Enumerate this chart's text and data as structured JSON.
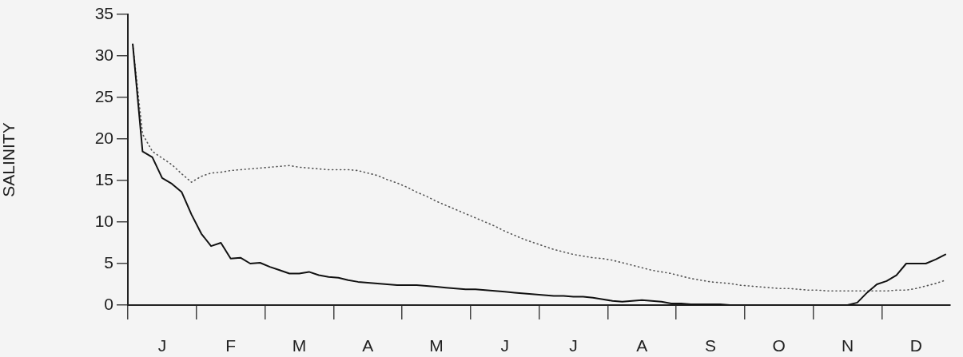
{
  "chart_data": {
    "type": "line",
    "ylabel": "SALINITY",
    "ylim": [
      0,
      35
    ],
    "yticks": [
      0,
      5,
      10,
      15,
      20,
      25,
      30,
      35
    ],
    "grid": false,
    "legend": false,
    "marker": "none",
    "categories": [
      null,
      null,
      null,
      "J",
      null,
      null,
      null,
      null,
      null,
      null,
      "F",
      null,
      null,
      null,
      null,
      null,
      null,
      "M",
      null,
      null,
      null,
      null,
      null,
      null,
      "A",
      null,
      null,
      null,
      null,
      null,
      null,
      "M",
      null,
      null,
      null,
      null,
      null,
      null,
      "J",
      null,
      null,
      null,
      null,
      null,
      null,
      "J",
      null,
      null,
      null,
      null,
      null,
      null,
      "A",
      null,
      null,
      null,
      null,
      null,
      null,
      "S",
      null,
      null,
      null,
      null,
      null,
      null,
      "O",
      null,
      null,
      null,
      null,
      null,
      null,
      "N",
      null,
      null,
      null,
      null,
      null,
      null,
      "D",
      null,
      null,
      null
    ],
    "series": [
      {
        "color": "#111111",
        "line_style": "solid",
        "values": [
          31.4,
          18.5,
          17.8,
          15.3,
          14.6,
          13.6,
          10.9,
          8.6,
          7.1,
          7.5,
          5.6,
          5.7,
          5.0,
          5.1,
          4.6,
          4.2,
          3.8,
          3.8,
          4.0,
          3.6,
          3.4,
          3.3,
          3.0,
          2.8,
          2.7,
          2.6,
          2.5,
          2.4,
          2.4,
          2.4,
          2.3,
          2.2,
          2.1,
          2.0,
          1.9,
          1.9,
          1.8,
          1.7,
          1.6,
          1.5,
          1.4,
          1.3,
          1.2,
          1.1,
          1.1,
          1.0,
          1.0,
          0.9,
          0.7,
          0.5,
          0.4,
          0.5,
          0.6,
          0.5,
          0.4,
          0.2,
          0.2,
          0.1,
          0.1,
          0.1,
          0.1,
          0,
          0,
          0,
          0,
          0,
          0,
          0,
          0,
          0,
          0,
          0,
          0,
          0,
          0.3,
          1.5,
          2.5,
          2.9,
          3.6,
          5.0,
          5.0,
          5.0,
          5.5,
          6.1
        ]
      },
      {
        "color": "#555555",
        "line_style": "dotted",
        "values": [
          31.4,
          20.6,
          18.5,
          17.7,
          16.9,
          15.8,
          14.8,
          15.5,
          15.9,
          16.0,
          16.2,
          16.3,
          16.4,
          16.5,
          16.6,
          16.7,
          16.8,
          16.6,
          16.5,
          16.4,
          16.3,
          16.3,
          16.3,
          16.2,
          15.9,
          15.6,
          15.1,
          14.7,
          14.2,
          13.6,
          13.1,
          12.5,
          12.0,
          11.5,
          11.0,
          10.5,
          10.0,
          9.5,
          8.9,
          8.4,
          7.9,
          7.5,
          7.1,
          6.7,
          6.4,
          6.1,
          5.9,
          5.7,
          5.6,
          5.4,
          5.1,
          4.8,
          4.5,
          4.2,
          4.0,
          3.8,
          3.5,
          3.2,
          3.0,
          2.8,
          2.7,
          2.6,
          2.4,
          2.3,
          2.2,
          2.1,
          2.0,
          2.0,
          1.9,
          1.8,
          1.8,
          1.7,
          1.7,
          1.7,
          1.7,
          1.7,
          1.7,
          1.7,
          1.8,
          1.8,
          2.0,
          2.3,
          2.6,
          3.0
        ]
      }
    ]
  }
}
